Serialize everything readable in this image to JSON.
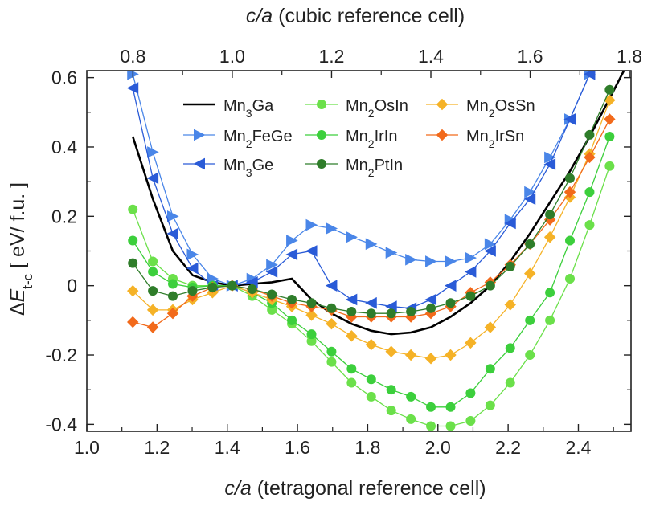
{
  "chart_data": {
    "type": "line",
    "xlabel": "c/a (tetragonal reference cell)",
    "ylabel": "ΔE_t-c [ eV/ f.u. ]",
    "x2label": "c/a (cubic reference cell)",
    "xlim": [
      1.0,
      2.55
    ],
    "ylim": [
      -0.42,
      0.62
    ],
    "x2lim": [
      0.7071,
      1.8031
    ],
    "xticks": [
      1.0,
      1.2,
      1.4,
      1.6,
      1.8,
      2.0,
      2.2,
      2.4
    ],
    "xtick_labels": [
      "1.0",
      "1.2",
      "1.4",
      "1.6",
      "1.8",
      "2.0",
      "2.2",
      "2.4"
    ],
    "yticks": [
      -0.4,
      -0.2,
      0,
      0.2,
      0.4,
      0.6
    ],
    "ytick_labels": [
      "-0.4",
      "-0.2",
      "0",
      "0.2",
      "0.4",
      "0.6"
    ],
    "x2ticks": [
      0.8,
      1.0,
      1.2,
      1.4,
      1.6,
      1.8
    ],
    "x2tick_labels": [
      "0.8",
      "1.0",
      "1.2",
      "1.4",
      "1.6",
      "1.8"
    ],
    "legend_position": "upper-center",
    "series": [
      {
        "name": "Mn3Ga",
        "label_parts": [
          [
            "Mn",
            ""
          ],
          [
            "3",
            "sub"
          ],
          [
            "Ga",
            ""
          ]
        ],
        "color": "#000000",
        "marker": "none",
        "x": [
          1.131,
          1.188,
          1.245,
          1.301,
          1.358,
          1.414,
          1.471,
          1.527,
          1.584,
          1.64,
          1.697,
          1.754,
          1.81,
          1.867,
          1.923,
          1.98,
          2.036,
          2.093,
          2.149,
          2.206,
          2.262,
          2.319,
          2.376,
          2.432,
          2.489,
          2.545
        ],
        "y": [
          0.43,
          0.25,
          0.1,
          0.03,
          0.01,
          0.0,
          0.005,
          0.01,
          0.02,
          -0.04,
          -0.08,
          -0.11,
          -0.13,
          -0.14,
          -0.135,
          -0.12,
          -0.09,
          -0.05,
          0.0,
          0.07,
          0.15,
          0.24,
          0.33,
          0.43,
          0.54,
          0.65
        ]
      },
      {
        "name": "Mn2FeGe",
        "label_parts": [
          [
            "Mn",
            ""
          ],
          [
            "2",
            "sub"
          ],
          [
            "FeGe",
            ""
          ]
        ],
        "color": "#4a86e8",
        "marker": "tri-right",
        "x": [
          1.131,
          1.188,
          1.245,
          1.301,
          1.358,
          1.414,
          1.471,
          1.527,
          1.584,
          1.64,
          1.697,
          1.754,
          1.81,
          1.867,
          1.923,
          1.98,
          2.036,
          2.093,
          2.149,
          2.206,
          2.262,
          2.319,
          2.376,
          2.432
        ],
        "y": [
          0.61,
          0.385,
          0.2,
          0.09,
          0.02,
          0.0,
          0.02,
          0.06,
          0.13,
          0.175,
          0.165,
          0.14,
          0.12,
          0.095,
          0.075,
          0.07,
          0.07,
          0.08,
          0.12,
          0.19,
          0.27,
          0.37,
          0.48,
          0.61
        ]
      },
      {
        "name": "Mn3Ge",
        "label_parts": [
          [
            "Mn",
            ""
          ],
          [
            "3",
            "sub"
          ],
          [
            "Ge",
            ""
          ]
        ],
        "color": "#2a5bd7",
        "marker": "tri-left",
        "x": [
          1.131,
          1.188,
          1.245,
          1.301,
          1.358,
          1.414,
          1.471,
          1.527,
          1.584,
          1.64,
          1.697,
          1.754,
          1.81,
          1.867,
          1.923,
          1.98,
          2.036,
          2.093,
          2.149,
          2.206,
          2.262,
          2.319,
          2.376,
          2.432
        ],
        "y": [
          0.57,
          0.31,
          0.15,
          0.05,
          0.0,
          0.0,
          0.01,
          0.04,
          0.09,
          0.1,
          0.0,
          -0.04,
          -0.05,
          -0.06,
          -0.065,
          -0.04,
          0.0,
          0.04,
          0.1,
          0.18,
          0.25,
          0.35,
          0.48,
          0.61
        ]
      },
      {
        "name": "Mn2OsIn",
        "label_parts": [
          [
            "Mn",
            ""
          ],
          [
            "2",
            "sub"
          ],
          [
            "OsIn",
            ""
          ]
        ],
        "color": "#6be04a",
        "marker": "circle",
        "x": [
          1.131,
          1.188,
          1.245,
          1.301,
          1.358,
          1.414,
          1.471,
          1.527,
          1.584,
          1.64,
          1.697,
          1.754,
          1.81,
          1.867,
          1.923,
          1.98,
          2.036,
          2.093,
          2.149,
          2.206,
          2.262,
          2.319,
          2.376,
          2.432,
          2.489
        ],
        "y": [
          0.22,
          0.07,
          0.02,
          0.0,
          0.0,
          0.0,
          -0.03,
          -0.07,
          -0.11,
          -0.16,
          -0.22,
          -0.28,
          -0.32,
          -0.36,
          -0.385,
          -0.405,
          -0.405,
          -0.39,
          -0.345,
          -0.28,
          -0.2,
          -0.1,
          0.02,
          0.175,
          0.345
        ]
      },
      {
        "name": "Mn2IrIn",
        "label_parts": [
          [
            "Mn",
            ""
          ],
          [
            "2",
            "sub"
          ],
          [
            "IrIn",
            ""
          ]
        ],
        "color": "#3ccf3c",
        "marker": "circle",
        "x": [
          1.131,
          1.188,
          1.245,
          1.301,
          1.358,
          1.414,
          1.471,
          1.527,
          1.584,
          1.64,
          1.697,
          1.754,
          1.81,
          1.867,
          1.923,
          1.98,
          2.036,
          2.093,
          2.149,
          2.206,
          2.262,
          2.319,
          2.376,
          2.432,
          2.489
        ],
        "y": [
          0.13,
          0.04,
          0.005,
          -0.005,
          0.0,
          0.0,
          -0.02,
          -0.05,
          -0.1,
          -0.14,
          -0.19,
          -0.24,
          -0.27,
          -0.3,
          -0.32,
          -0.35,
          -0.35,
          -0.31,
          -0.24,
          -0.18,
          -0.1,
          -0.02,
          0.13,
          0.27,
          0.43
        ]
      },
      {
        "name": "Mn2OsSn",
        "label_parts": [
          [
            "Mn",
            ""
          ],
          [
            "2",
            "sub"
          ],
          [
            "OsSn",
            ""
          ]
        ],
        "color": "#f5b227",
        "marker": "diamond",
        "x": [
          1.131,
          1.188,
          1.245,
          1.301,
          1.358,
          1.414,
          1.471,
          1.527,
          1.584,
          1.64,
          1.697,
          1.754,
          1.81,
          1.867,
          1.923,
          1.98,
          2.036,
          2.093,
          2.149,
          2.206,
          2.262,
          2.319,
          2.376,
          2.432,
          2.489
        ],
        "y": [
          -0.015,
          -0.07,
          -0.07,
          -0.04,
          -0.02,
          0.0,
          -0.02,
          -0.04,
          -0.06,
          -0.085,
          -0.11,
          -0.145,
          -0.17,
          -0.19,
          -0.2,
          -0.21,
          -0.2,
          -0.165,
          -0.12,
          -0.055,
          0.035,
          0.14,
          0.255,
          0.38,
          0.535
        ]
      },
      {
        "name": "Mn2IrSn",
        "label_parts": [
          [
            "Mn",
            ""
          ],
          [
            "2",
            "sub"
          ],
          [
            "IrSn",
            ""
          ]
        ],
        "color": "#f26a1b",
        "marker": "diamond",
        "x": [
          1.131,
          1.188,
          1.245,
          1.301,
          1.358,
          1.414,
          1.471,
          1.527,
          1.584,
          1.64,
          1.697,
          1.754,
          1.81,
          1.867,
          1.923,
          1.98,
          2.036,
          2.093,
          2.149,
          2.206,
          2.262,
          2.319,
          2.376,
          2.432,
          2.489
        ],
        "y": [
          -0.105,
          -0.12,
          -0.08,
          -0.03,
          -0.005,
          0.0,
          -0.01,
          -0.03,
          -0.05,
          -0.06,
          -0.07,
          -0.09,
          -0.09,
          -0.09,
          -0.09,
          -0.08,
          -0.06,
          -0.02,
          0.01,
          0.06,
          0.12,
          0.19,
          0.27,
          0.37,
          0.48
        ]
      },
      {
        "name": "Mn2PtIn",
        "label_parts": [
          [
            "Mn",
            ""
          ],
          [
            "2",
            "sub"
          ],
          [
            "PtIn",
            ""
          ]
        ],
        "color": "#2f7d2a",
        "marker": "circle",
        "x": [
          1.131,
          1.188,
          1.245,
          1.301,
          1.358,
          1.414,
          1.471,
          1.527,
          1.584,
          1.64,
          1.697,
          1.754,
          1.81,
          1.867,
          1.923,
          1.98,
          2.036,
          2.093,
          2.149,
          2.206,
          2.262,
          2.319,
          2.376,
          2.432,
          2.489
        ],
        "y": [
          0.065,
          -0.015,
          -0.03,
          -0.015,
          -0.005,
          0.0,
          -0.01,
          -0.025,
          -0.04,
          -0.05,
          -0.065,
          -0.075,
          -0.08,
          -0.08,
          -0.075,
          -0.065,
          -0.05,
          -0.03,
          0.0,
          0.055,
          0.12,
          0.205,
          0.31,
          0.435,
          0.565
        ]
      }
    ]
  }
}
